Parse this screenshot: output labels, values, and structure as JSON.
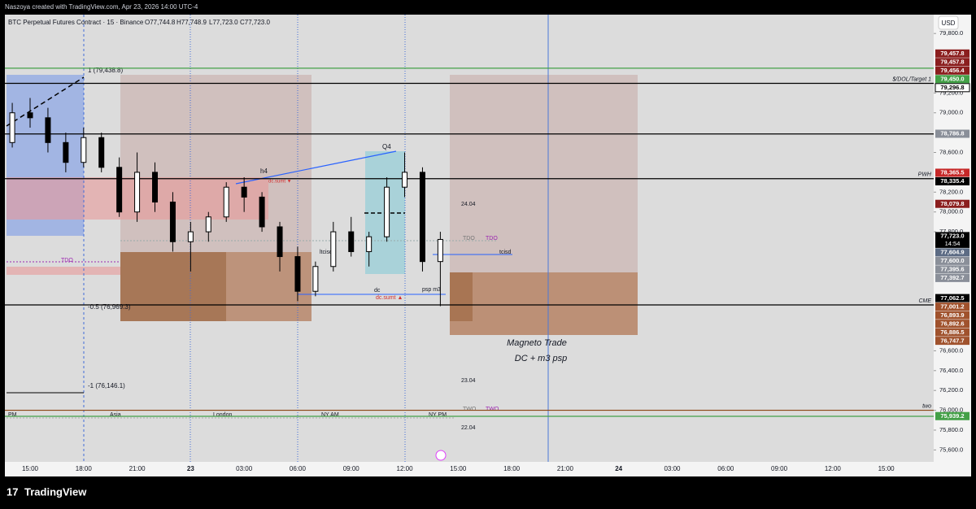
{
  "header": {
    "credit": "Naszoya created with TradingView.com, Apr 23, 2026 14:00 UTC-4"
  },
  "legend": {
    "symbol": "BTC Perpetual Futures Contract · 15 · Binance",
    "open": "O77,744.8",
    "high": "H77,748.9",
    "low": "L77,723.0",
    "close": "C77,723.0"
  },
  "price_axis": {
    "currency": "USD",
    "ylim": [
      75480,
      79990
    ],
    "ticks": [
      {
        "value": 79800,
        "label": "79,800.0"
      },
      {
        "value": 79200,
        "label": "79,200.0"
      },
      {
        "value": 79000,
        "label": "79,000.0"
      },
      {
        "value": 78600,
        "label": "78,600.0"
      },
      {
        "value": 78200,
        "label": "78,200.0"
      },
      {
        "value": 78000,
        "label": "78,000.0"
      },
      {
        "value": 77800,
        "label": "77,800.0"
      },
      {
        "value": 76600,
        "label": "76,600.0"
      },
      {
        "value": 76400,
        "label": "76,400.0"
      },
      {
        "value": 76200,
        "label": "76,200.0"
      },
      {
        "value": 76000,
        "label": "76,000.0"
      },
      {
        "value": 75800,
        "label": "75,800.0"
      },
      {
        "value": 75600,
        "label": "75,600.0"
      }
    ],
    "price_labels": [
      {
        "value": 79457.8,
        "label": "79,457.8",
        "color": "#8b1e1e"
      },
      {
        "value": 79457.8,
        "label": "79,457.8",
        "color": "#8b1e1e"
      },
      {
        "value": 79456.4,
        "label": "79,456.4",
        "color": "#8b1e1e"
      },
      {
        "value": 79450.0,
        "label": "79,450.0",
        "color": "#43a047"
      },
      {
        "value": 79296.8,
        "label": "79,296.8",
        "color": "#ffffff"
      },
      {
        "value": 78786.8,
        "label": "78,786.8",
        "color": "#8a8f99"
      },
      {
        "value": 78365.5,
        "label": "78,365.5",
        "color": "#c62828"
      },
      {
        "value": 78335.4,
        "label": "78,335.4",
        "color": "#000000"
      },
      {
        "value": 78079.8,
        "label": "78,079.8",
        "color": "#8b1e1e"
      },
      {
        "value": 77723.0,
        "label": "77,723.0",
        "sub": "14:54",
        "color": "#000000"
      },
      {
        "value": 77604.9,
        "label": "77,604.9",
        "color": "#5c6b84"
      },
      {
        "value": 77600.0,
        "label": "77,600.0",
        "color": "#8a8f99"
      },
      {
        "value": 77395.6,
        "label": "77,395.6",
        "color": "#8a8f99"
      },
      {
        "value": 77392.7,
        "label": "77,392.7",
        "color": "#8a8f99"
      },
      {
        "value": 77062.5,
        "label": "77,062.5",
        "color": "#000000"
      },
      {
        "value": 77001.2,
        "label": "77,001.2",
        "color": "#a0522d"
      },
      {
        "value": 76893.9,
        "label": "76,893.9",
        "color": "#a0522d"
      },
      {
        "value": 76892.6,
        "label": "76,892.6",
        "color": "#a0522d"
      },
      {
        "value": 76886.5,
        "label": "76,886.5",
        "color": "#a0522d"
      },
      {
        "value": 76747.7,
        "label": "76,747.7",
        "color": "#a0522d"
      },
      {
        "value": 75939.2,
        "label": "75,939.2",
        "color": "#43a047"
      }
    ]
  },
  "time_axis": [
    "15:00",
    "18:00",
    "21:00",
    "23",
    "03:00",
    "06:00",
    "09:00",
    "12:00",
    "15:00",
    "18:00",
    "21:00",
    "24",
    "03:00",
    "06:00",
    "09:00",
    "12:00",
    "15:00"
  ],
  "levels": [
    {
      "value": 79450.0,
      "color": "#43a047"
    },
    {
      "value": 79296.8,
      "color": "#000000",
      "label": "$/DOL/Target 1"
    },
    {
      "value": 78786.8,
      "color": "#000000"
    },
    {
      "value": 78335.4,
      "color": "#000000",
      "label": "PWH"
    },
    {
      "value": 77062.5,
      "color": "#000000",
      "label": "CME"
    },
    {
      "value": 76000.0,
      "color": "#8b4513",
      "label": "two"
    },
    {
      "value": 75939.2,
      "color": "#43a047"
    }
  ],
  "candles": [
    [
      -1,
      78700,
      79100,
      78650,
      79000
    ],
    [
      0,
      79000,
      79150,
      78850,
      78950
    ],
    [
      1,
      78950,
      79050,
      78600,
      78700
    ],
    [
      2,
      78700,
      78800,
      78400,
      78500
    ],
    [
      3,
      78500,
      78850,
      78450,
      78750
    ],
    [
      4,
      78750,
      78800,
      78400,
      78450
    ],
    [
      5,
      78450,
      78550,
      77950,
      78000
    ],
    [
      6,
      78000,
      78600,
      77900,
      78400
    ],
    [
      7,
      78400,
      78500,
      78000,
      78100
    ],
    [
      8,
      78100,
      78200,
      77600,
      77700
    ],
    [
      9,
      77700,
      77900,
      77400,
      77800
    ],
    [
      10,
      77800,
      78000,
      77700,
      77950
    ],
    [
      11,
      77950,
      78300,
      77900,
      78250
    ],
    [
      12,
      78250,
      78350,
      78000,
      78150
    ],
    [
      13,
      78150,
      78200,
      77800,
      77850
    ],
    [
      14,
      77850,
      77900,
      77400,
      77550
    ],
    [
      15,
      77550,
      77650,
      77100,
      77200
    ],
    [
      16,
      77200,
      77500,
      77150,
      77450
    ],
    [
      17,
      77450,
      77900,
      77400,
      77800
    ],
    [
      18,
      77800,
      77950,
      77550,
      77600
    ],
    [
      19,
      77600,
      77800,
      77450,
      77750
    ],
    [
      20,
      77750,
      78350,
      77700,
      78250
    ],
    [
      21,
      78250,
      78600,
      78150,
      78400
    ],
    [
      22,
      78400,
      78450,
      77400,
      77500
    ],
    [
      23,
      77500,
      77800,
      77050,
      77723
    ]
  ],
  "annotations": {
    "fib_1": "1 (79,438.8)",
    "fib_05": "-0.5 (76,969.3)",
    "fib_m1": "-1 (76,146.1)",
    "h4": "h4",
    "q4": "Q4",
    "d24": "24.04",
    "d23": "23.04",
    "d22": "22.04",
    "tdo1": "TDO",
    "tdo2": "TDO",
    "tdo3": "TDO",
    "tcisd": "tcisd",
    "ltcisd": "ltcisd",
    "dc": "dc",
    "dcsumt": "dc.sumt ▲",
    "dcsumt2": "dc.sumt ▼",
    "psp": "psp m3",
    "trade1": "Magneto Trade",
    "trade2": "DC + m3 psp",
    "pm": "PM",
    "asia": "Asia",
    "london": "London",
    "nyam": "NY AM",
    "nypm": "NY PM",
    "two1": "TWO",
    "two2": "TWO"
  },
  "footer": {
    "brand": "TradingView"
  }
}
